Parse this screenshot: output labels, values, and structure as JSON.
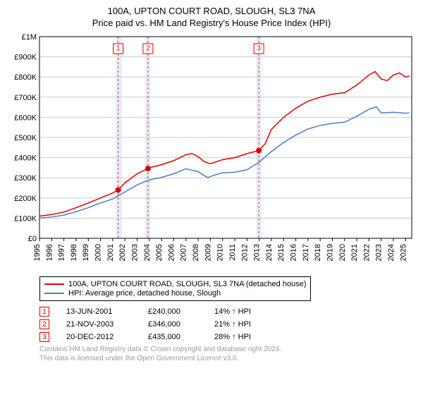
{
  "title": "100A, UPTON COURT ROAD, SLOUGH, SL3 7NA",
  "subtitle": "Price paid vs. HM Land Registry's House Price Index (HPI)",
  "chart": {
    "type": "line",
    "background_color": "#ffffff",
    "grid_color": "#cdcdcd",
    "axis_color": "#000000",
    "label_fontsize": 11,
    "y": {
      "min": 0,
      "max": 1000000,
      "ticks": [
        0,
        100000,
        200000,
        300000,
        400000,
        500000,
        600000,
        700000,
        800000,
        900000,
        1000000
      ],
      "tick_labels": [
        "£0",
        "£100K",
        "£200K",
        "£300K",
        "£400K",
        "£500K",
        "£600K",
        "£700K",
        "£800K",
        "£900K",
        "£1M"
      ]
    },
    "x": {
      "min": 1995,
      "max": 2025.5,
      "ticks": [
        1995,
        1996,
        1997,
        1998,
        1999,
        2000,
        2001,
        2002,
        2003,
        2004,
        2005,
        2006,
        2007,
        2008,
        2009,
        2010,
        2011,
        2012,
        2013,
        2014,
        2015,
        2016,
        2017,
        2018,
        2019,
        2020,
        2021,
        2022,
        2023,
        2024,
        2025
      ],
      "tick_labels": [
        "1995",
        "1996",
        "1997",
        "1998",
        "1999",
        "2000",
        "2001",
        "2002",
        "2003",
        "2004",
        "2005",
        "2006",
        "2007",
        "2008",
        "2009",
        "2010",
        "2011",
        "2012",
        "2013",
        "2014",
        "2015",
        "2016",
        "2017",
        "2018",
        "2019",
        "2020",
        "2021",
        "2022",
        "2023",
        "2024",
        "2025"
      ]
    },
    "shade_bands": [
      {
        "from": 2001.25,
        "to": 2001.75,
        "color": "#e8eef8"
      },
      {
        "from": 2003.65,
        "to": 2004.1,
        "color": "#e8eef8"
      },
      {
        "from": 2012.75,
        "to": 2013.2,
        "color": "#e8eef8"
      }
    ],
    "marker_vlines": [
      {
        "x": 2001.45,
        "color": "#e10000"
      },
      {
        "x": 2003.89,
        "color": "#e10000"
      },
      {
        "x": 2012.97,
        "color": "#e10000"
      }
    ],
    "marker_labels": [
      {
        "x": 2001.45,
        "text": "1",
        "color": "#e10000"
      },
      {
        "x": 2003.89,
        "text": "2",
        "color": "#e10000"
      },
      {
        "x": 2012.97,
        "text": "3",
        "color": "#e10000"
      }
    ],
    "series": [
      {
        "name": "property",
        "color": "#e10000",
        "width": 1.5,
        "points": [
          [
            1995,
            110000
          ],
          [
            1996,
            118000
          ],
          [
            1997,
            130000
          ],
          [
            1998,
            152000
          ],
          [
            1999,
            175000
          ],
          [
            2000,
            200000
          ],
          [
            2001,
            225000
          ],
          [
            2001.45,
            240000
          ],
          [
            2002,
            275000
          ],
          [
            2003,
            320000
          ],
          [
            2003.89,
            346000
          ],
          [
            2004,
            350000
          ],
          [
            2005,
            365000
          ],
          [
            2006,
            385000
          ],
          [
            2007,
            415000
          ],
          [
            2007.5,
            420000
          ],
          [
            2008,
            405000
          ],
          [
            2008.5,
            380000
          ],
          [
            2009,
            370000
          ],
          [
            2010,
            390000
          ],
          [
            2011,
            400000
          ],
          [
            2012,
            420000
          ],
          [
            2012.97,
            435000
          ],
          [
            2013.5,
            470000
          ],
          [
            2014,
            540000
          ],
          [
            2015,
            600000
          ],
          [
            2016,
            645000
          ],
          [
            2017,
            680000
          ],
          [
            2018,
            700000
          ],
          [
            2019,
            715000
          ],
          [
            2020,
            722000
          ],
          [
            2021,
            760000
          ],
          [
            2021.8,
            800000
          ],
          [
            2022,
            810000
          ],
          [
            2022.5,
            827000
          ],
          [
            2023,
            790000
          ],
          [
            2023.5,
            782000
          ],
          [
            2024,
            810000
          ],
          [
            2024.5,
            820000
          ],
          [
            2025,
            800000
          ],
          [
            2025.3,
            805000
          ]
        ],
        "dots": [
          [
            2001.45,
            240000
          ],
          [
            2003.89,
            346000
          ],
          [
            2012.97,
            435000
          ]
        ]
      },
      {
        "name": "hpi",
        "color": "#4a7fc9",
        "width": 1.5,
        "points": [
          [
            1995,
            100000
          ],
          [
            1996,
            106000
          ],
          [
            1997,
            115000
          ],
          [
            1998,
            132000
          ],
          [
            1999,
            152000
          ],
          [
            2000,
            175000
          ],
          [
            2001,
            195000
          ],
          [
            2002,
            230000
          ],
          [
            2003,
            265000
          ],
          [
            2004,
            290000
          ],
          [
            2005,
            302000
          ],
          [
            2006,
            320000
          ],
          [
            2007,
            345000
          ],
          [
            2008,
            330000
          ],
          [
            2008.8,
            300000
          ],
          [
            2009,
            307000
          ],
          [
            2010,
            325000
          ],
          [
            2011,
            328000
          ],
          [
            2012,
            340000
          ],
          [
            2013,
            378000
          ],
          [
            2014,
            430000
          ],
          [
            2015,
            475000
          ],
          [
            2016,
            512000
          ],
          [
            2017,
            542000
          ],
          [
            2018,
            560000
          ],
          [
            2019,
            570000
          ],
          [
            2020,
            576000
          ],
          [
            2021,
            605000
          ],
          [
            2022,
            640000
          ],
          [
            2022.6,
            652000
          ],
          [
            2023,
            622000
          ],
          [
            2024,
            625000
          ],
          [
            2025,
            620000
          ],
          [
            2025.3,
            622000
          ]
        ]
      }
    ]
  },
  "legend": [
    {
      "color": "#e10000",
      "label": "100A, UPTON COURT ROAD, SLOUGH, SL3 7NA (detached house)"
    },
    {
      "color": "#4a7fc9",
      "label": "HPI: Average price, detached house, Slough"
    }
  ],
  "transactions": [
    {
      "n": "1",
      "color": "#e10000",
      "date": "13-JUN-2001",
      "price": "£240,000",
      "pct": "14% ↑ HPI"
    },
    {
      "n": "2",
      "color": "#e10000",
      "date": "21-NOV-2003",
      "price": "£346,000",
      "pct": "21% ↑ HPI"
    },
    {
      "n": "3",
      "color": "#e10000",
      "date": "20-DEC-2012",
      "price": "£435,000",
      "pct": "28% ↑ HPI"
    }
  ],
  "footer1": "Contains HM Land Registry data © Crown copyright and database right 2024.",
  "footer2": "This data is licensed under the Open Government Licence v3.0."
}
